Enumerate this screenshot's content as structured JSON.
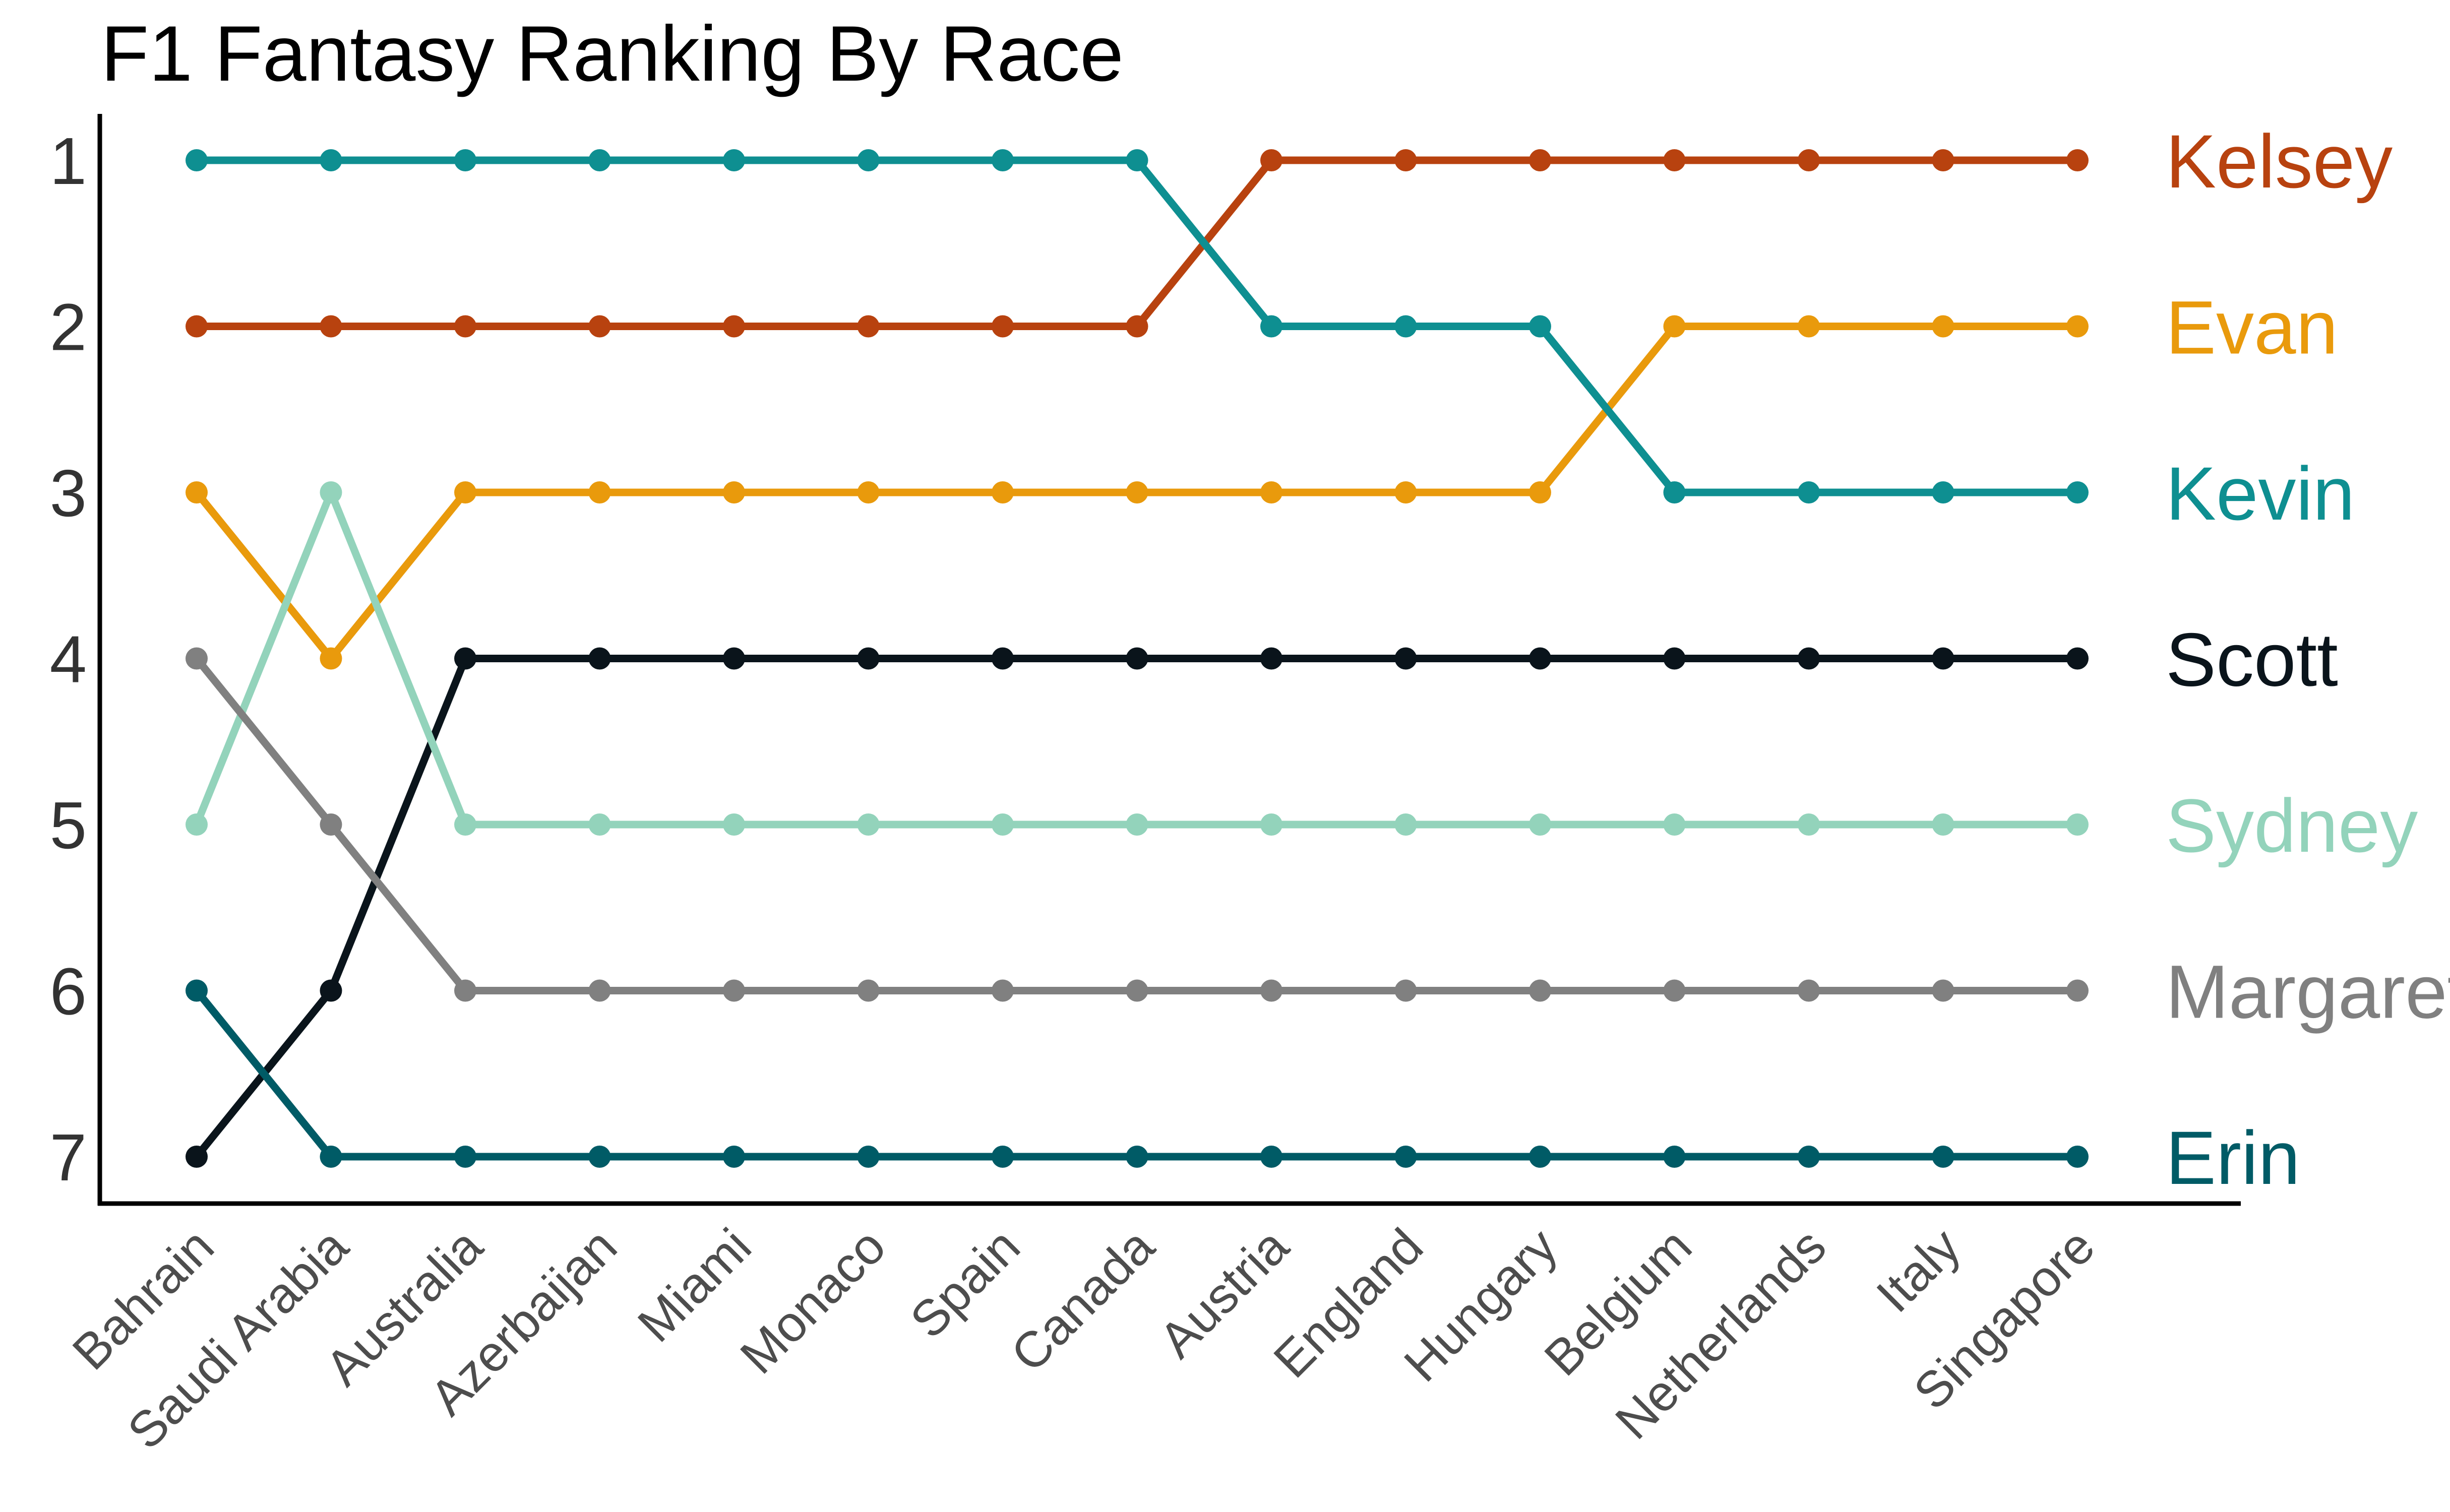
{
  "chart_data": {
    "type": "line",
    "title": "F1 Fantasy Ranking By Race",
    "xlabel": "",
    "ylabel": "",
    "categories": [
      "Bahrain",
      "Saudi Arabia",
      "Australia",
      "Azerbaijan",
      "Miami",
      "Monaco",
      "Spain",
      "Canada",
      "Austria",
      "England",
      "Hungary",
      "Belgium",
      "Netherlands",
      "Italy",
      "Singapore"
    ],
    "ylim": [
      1,
      7
    ],
    "y_reversed": true,
    "yticks": [
      "1",
      "2",
      "3",
      "4",
      "5",
      "6",
      "7"
    ],
    "grid": false,
    "legend": "labels at right end of lines",
    "series": [
      {
        "name": "Kelsey",
        "color": "#B8420F",
        "values": [
          2,
          2,
          2,
          2,
          2,
          2,
          2,
          2,
          1,
          1,
          1,
          1,
          1,
          1,
          1
        ]
      },
      {
        "name": "Evan",
        "color": "#E99A0C",
        "values": [
          3,
          4,
          3,
          3,
          3,
          3,
          3,
          3,
          3,
          3,
          3,
          2,
          2,
          2,
          2
        ]
      },
      {
        "name": "Kevin",
        "color": "#0E8F91",
        "values": [
          1,
          1,
          1,
          1,
          1,
          1,
          1,
          1,
          2,
          2,
          2,
          3,
          3,
          3,
          3
        ]
      },
      {
        "name": "Scott",
        "color": "#0A141B",
        "values": [
          7,
          6,
          4,
          4,
          4,
          4,
          4,
          4,
          4,
          4,
          4,
          4,
          4,
          4,
          4
        ]
      },
      {
        "name": "Sydney",
        "color": "#93D3BB",
        "values": [
          5,
          3,
          5,
          5,
          5,
          5,
          5,
          5,
          5,
          5,
          5,
          5,
          5,
          5,
          5
        ]
      },
      {
        "name": "Margaret",
        "color": "#808080",
        "values": [
          4,
          5,
          6,
          6,
          6,
          6,
          6,
          6,
          6,
          6,
          6,
          6,
          6,
          6,
          6
        ]
      },
      {
        "name": "Erin",
        "color": "#005B66",
        "values": [
          6,
          7,
          7,
          7,
          7,
          7,
          7,
          7,
          7,
          7,
          7,
          7,
          7,
          7,
          7
        ]
      }
    ]
  }
}
